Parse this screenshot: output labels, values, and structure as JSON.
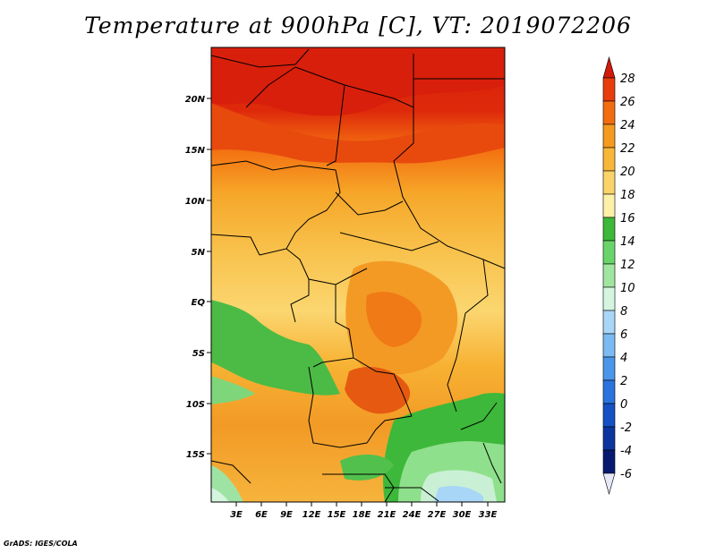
{
  "title": "Temperature at 900hPa [C], VT: 2019072206",
  "footer": "GrADS: IGES/COLA",
  "map": {
    "lon_ticks": [
      "3E",
      "6E",
      "9E",
      "12E",
      "15E",
      "18E",
      "21E",
      "24E",
      "27E",
      "30E",
      "33E"
    ],
    "lat_ticks": [
      "20N",
      "15N",
      "10N",
      "5N",
      "EQ",
      "5S",
      "10S",
      "15S"
    ]
  },
  "colorbar": {
    "labels": [
      "28",
      "26",
      "24",
      "22",
      "20",
      "18",
      "16",
      "14",
      "12",
      "10",
      "8",
      "6",
      "4",
      "2",
      "0",
      "-2",
      "-4",
      "-6"
    ],
    "colors": [
      "#d11a0a",
      "#e83c0c",
      "#f26d10",
      "#f59a1f",
      "#f7b739",
      "#fad469",
      "#fdf0a8",
      "#3db83a",
      "#6ad46b",
      "#a1e6a0",
      "#d5f5df",
      "#a8d6f7",
      "#7bbaf2",
      "#4c96ea",
      "#2a73de",
      "#1550c4",
      "#0c35a0",
      "#071a70"
    ],
    "top_color": "#d11a0a",
    "bottom_color": "#e6e8f7"
  }
}
